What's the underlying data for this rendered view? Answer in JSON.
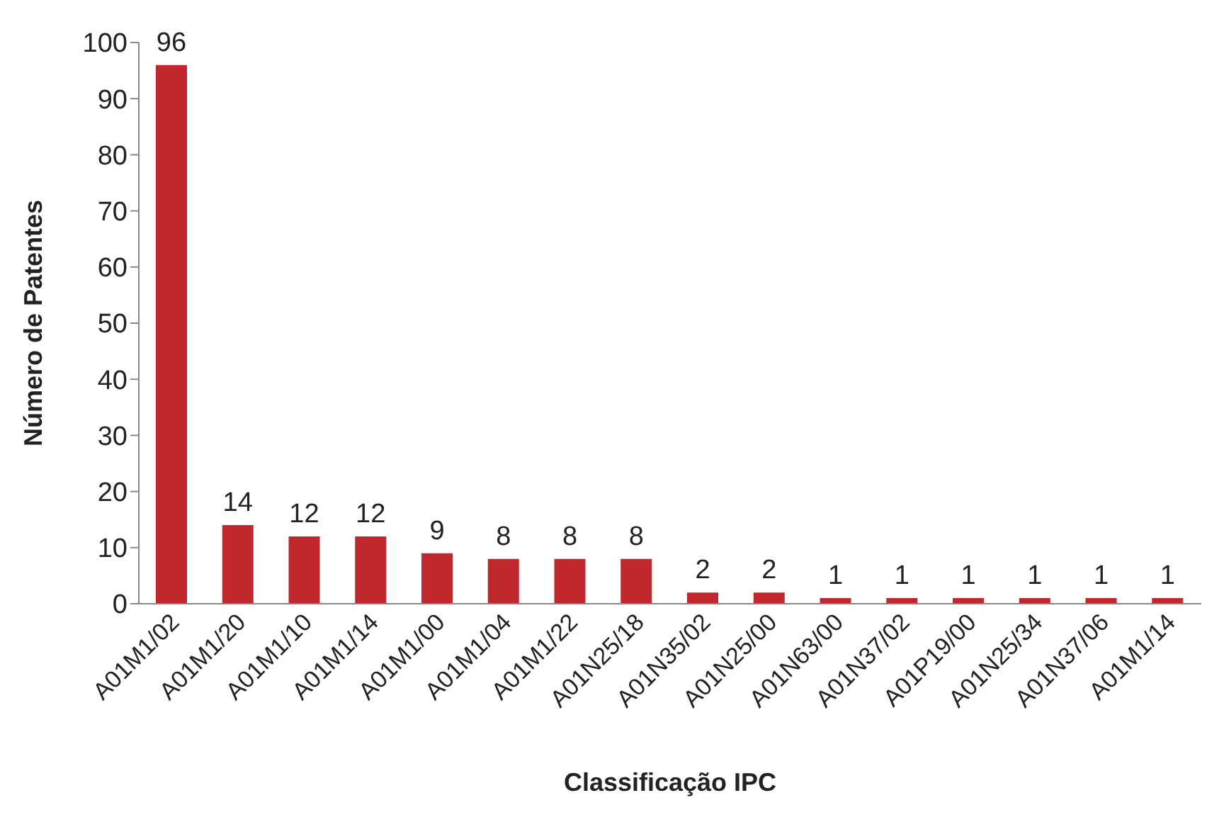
{
  "chart_data": {
    "type": "bar",
    "xlabel": "Classificação IPC",
    "ylabel": "Número de Patentes",
    "categories": [
      "A01M1/02",
      "A01M1/20",
      "A01M1/10",
      "A01M1/14",
      "A01M1/00",
      "A01M1/04",
      "A01M1/22",
      "A01N25/18",
      "A01N35/02",
      "A01N25/00",
      "A01N63/00",
      "A01N37/02",
      "A01P19/00",
      "A01N25/34",
      "A01N37/06",
      "A01M1/14"
    ],
    "values": [
      96,
      14,
      12,
      12,
      9,
      8,
      8,
      8,
      2,
      2,
      1,
      1,
      1,
      1,
      1,
      1
    ],
    "color": "#c0282d",
    "ylim": [
      0,
      100
    ],
    "yticks": [
      0,
      10,
      20,
      30,
      40,
      50,
      60,
      70,
      80,
      90,
      100
    ],
    "grid": false,
    "data_labels": true
  }
}
